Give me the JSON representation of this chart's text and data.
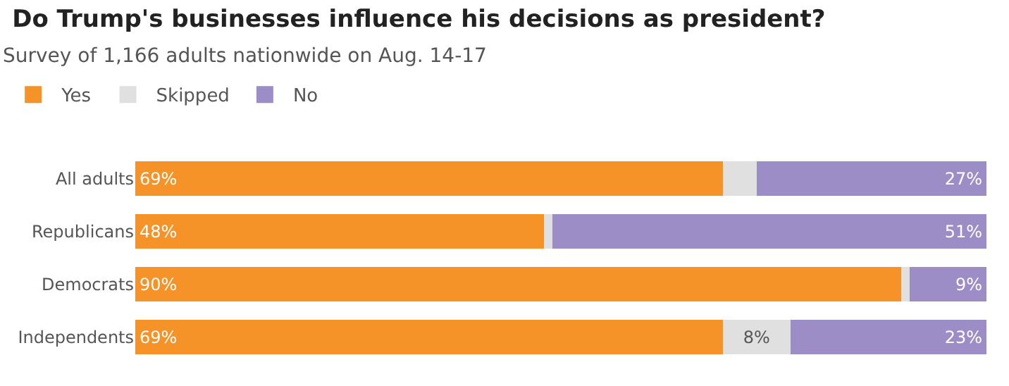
{
  "chart_data": {
    "type": "bar",
    "orientation": "horizontal",
    "stacked": true,
    "title": "Do Trump's businesses influence his decisions as president?",
    "subtitle": "Survey of 1,166 adults nationwide on Aug. 14-17",
    "categories": [
      "All adults",
      "Republicans",
      "Democrats",
      "Independents"
    ],
    "series": [
      {
        "name": "Yes",
        "color": "#f59228",
        "values": [
          69,
          48,
          90,
          69
        ],
        "value_labels": [
          "69%",
          "48%",
          "90%",
          "69%"
        ]
      },
      {
        "name": "Skipped",
        "color": "#e0e0e0",
        "values": [
          4,
          1,
          1,
          8
        ],
        "value_labels": [
          null,
          null,
          null,
          "8%"
        ]
      },
      {
        "name": "No",
        "color": "#9c8dc6",
        "values": [
          27,
          51,
          9,
          23
        ],
        "value_labels": [
          "27%",
          "51%",
          "9%",
          "23%"
        ]
      }
    ],
    "legend": "top left"
  }
}
